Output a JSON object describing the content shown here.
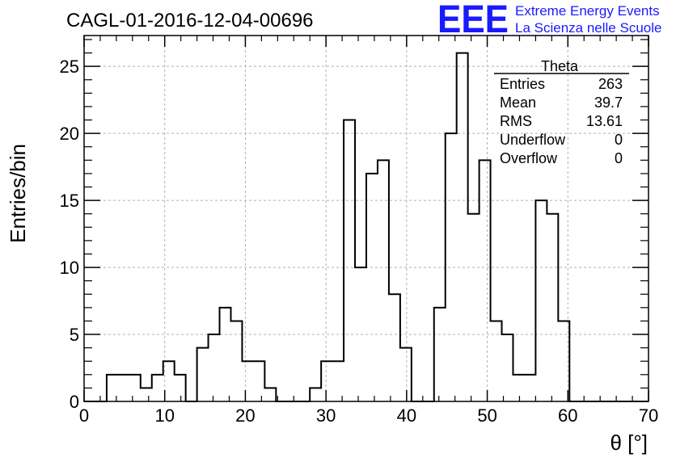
{
  "chart_data": {
    "type": "histogram",
    "title": "CAGL-01-2016-12-04-00696",
    "xlabel": "θ [°]",
    "ylabel": "Entries/bin",
    "xlim": [
      0,
      70
    ],
    "ylim": [
      0,
      27.3
    ],
    "bin_width": 1.4,
    "x_ticks": [
      0,
      10,
      20,
      30,
      40,
      50,
      60,
      70
    ],
    "y_ticks": [
      0,
      5,
      10,
      15,
      20,
      25
    ],
    "grid": true,
    "bin_low_edges": [
      0,
      1.4,
      2.8,
      4.2,
      5.6,
      7.0,
      8.4,
      9.8,
      11.2,
      12.6,
      14.0,
      15.4,
      16.8,
      18.2,
      19.6,
      21.0,
      22.4,
      23.8,
      25.2,
      26.6,
      28.0,
      29.4,
      30.8,
      32.2,
      33.6,
      35.0,
      36.4,
      37.8,
      39.2,
      40.6,
      42.0,
      43.4,
      44.8,
      46.2,
      47.6,
      49.0,
      50.4,
      51.8,
      53.2,
      54.6,
      56.0,
      57.4,
      58.8,
      60.2,
      61.6,
      63.0,
      64.4,
      65.8,
      67.2,
      68.6
    ],
    "values": [
      0,
      0,
      2,
      2,
      2,
      1,
      2,
      3,
      2,
      0,
      4,
      5,
      7,
      6,
      3,
      3,
      1,
      0,
      0,
      0,
      1,
      3,
      3,
      21,
      10,
      17,
      18,
      8,
      4,
      0,
      0,
      7,
      20,
      26,
      14,
      18,
      6,
      5,
      2,
      2,
      15,
      14,
      6,
      0,
      0,
      0,
      0,
      0,
      0,
      0
    ]
  },
  "stats_box": {
    "title": "Theta",
    "rows": [
      {
        "label": "Entries",
        "value": "263"
      },
      {
        "label": "Mean",
        "value": "39.7"
      },
      {
        "label": "RMS",
        "value": "13.61"
      },
      {
        "label": "Underflow",
        "value": "0"
      },
      {
        "label": "Overflow",
        "value": "0"
      }
    ]
  },
  "logo": {
    "letters": "EEE",
    "line1": "Extreme Energy Events",
    "line2": "La Scienza nelle Scuole",
    "color": "#1a1aff"
  }
}
